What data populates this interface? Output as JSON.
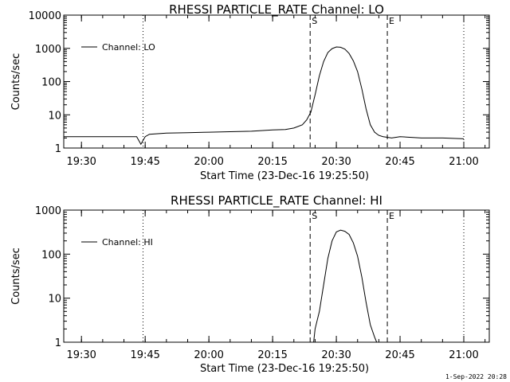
{
  "footer": {
    "timestamp": "1-Sep-2022 20:28"
  },
  "chart_data": [
    {
      "type": "line",
      "title": "RHESSI PARTICLE_RATE Channel: LO",
      "xlabel": "Start Time (23-Dec-16 19:25:50)",
      "ylabel": "Counts/sec",
      "y_scale": "log",
      "ylim": [
        1,
        10000
      ],
      "xlim": [
        "19:25:50",
        "21:06:00"
      ],
      "x_ticks": [
        "19:30",
        "19:45",
        "20:00",
        "20:15",
        "20:30",
        "20:45",
        "21:00"
      ],
      "y_ticks": [
        "1",
        "10",
        "100",
        "1000",
        "10000"
      ],
      "legend": {
        "position": "top-left",
        "entries": [
          "Channel: LO"
        ]
      },
      "markers": [
        {
          "time": "19:44:30",
          "label": "",
          "style": "dotted"
        },
        {
          "time": "20:23:50",
          "label": "S",
          "style": "dashed"
        },
        {
          "time": "20:42:00",
          "label": "E",
          "style": "dashed"
        },
        {
          "time": "21:00:00",
          "label": "",
          "style": "dotted"
        }
      ],
      "series": [
        {
          "name": "Channel: LO",
          "x": [
            "19:25:50",
            "19:30",
            "19:35",
            "19:40",
            "19:43",
            "19:44",
            "19:45",
            "19:46",
            "19:50",
            "19:55",
            "20:00",
            "20:05",
            "20:10",
            "20:15",
            "20:18",
            "20:20",
            "20:22",
            "20:23",
            "20:24",
            "20:25",
            "20:26",
            "20:27",
            "20:28",
            "20:29",
            "20:30",
            "20:31",
            "20:32",
            "20:33",
            "20:34",
            "20:35",
            "20:36",
            "20:37",
            "20:38",
            "20:39",
            "20:40",
            "20:41",
            "20:42",
            "20:43",
            "20:45",
            "20:50",
            "20:55",
            "21:00"
          ],
          "y": [
            2.2,
            2.2,
            2.2,
            2.2,
            2.2,
            1.3,
            2.2,
            2.6,
            2.8,
            2.9,
            3.0,
            3.1,
            3.2,
            3.5,
            3.6,
            4.0,
            5.0,
            7.0,
            12,
            40,
            150,
            400,
            750,
            980,
            1100,
            1080,
            950,
            700,
            420,
            200,
            60,
            15,
            5,
            3,
            2.4,
            2.2,
            2.1,
            2.0,
            2.2,
            2.0,
            2.0,
            1.9
          ]
        }
      ]
    },
    {
      "type": "line",
      "title": "RHESSI PARTICLE_RATE Channel: HI",
      "xlabel": "Start Time (23-Dec-16 19:25:50)",
      "ylabel": "Counts/sec",
      "y_scale": "log",
      "ylim": [
        1,
        1000
      ],
      "xlim": [
        "19:25:50",
        "21:06:00"
      ],
      "x_ticks": [
        "19:30",
        "19:45",
        "20:00",
        "20:15",
        "20:30",
        "20:45",
        "21:00"
      ],
      "y_ticks": [
        "1",
        "10",
        "100",
        "1000"
      ],
      "legend": {
        "position": "top-left",
        "entries": [
          "Channel: HI"
        ]
      },
      "markers": [
        {
          "time": "19:44:30",
          "label": "",
          "style": "dotted"
        },
        {
          "time": "20:23:50",
          "label": "S",
          "style": "dashed"
        },
        {
          "time": "20:42:00",
          "label": "E",
          "style": "dashed"
        },
        {
          "time": "21:00:00",
          "label": "",
          "style": "dotted"
        }
      ],
      "series": [
        {
          "name": "Channel: HI",
          "x": [
            "20:24:40",
            "20:25",
            "20:26",
            "20:27",
            "20:28",
            "20:29",
            "20:30",
            "20:31",
            "20:32",
            "20:33",
            "20:34",
            "20:35",
            "20:36",
            "20:37",
            "20:38",
            "20:39",
            "20:39:30"
          ],
          "y": [
            1,
            2,
            5,
            20,
            80,
            200,
            320,
            350,
            330,
            280,
            180,
            90,
            30,
            8,
            2.5,
            1.3,
            1
          ]
        }
      ]
    }
  ]
}
